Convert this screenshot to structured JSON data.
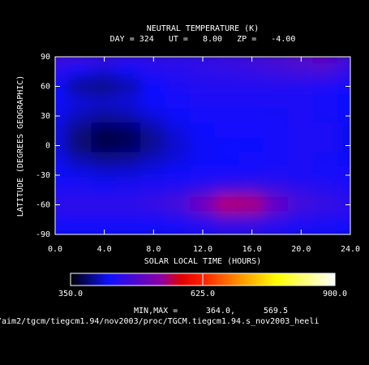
{
  "chart_data": {
    "type": "heatmap",
    "title": "NEUTRAL TEMPERATURE (K)",
    "subtitle": "DAY = 324   UT =   8.00   ZP =   -4.00",
    "xlabel": "SOLAR LOCAL TIME (HOURS)",
    "ylabel": "LATITUDE (DEGREES GEOGRAPHIC)",
    "x": [
      0,
      2,
      4,
      6,
      8,
      10,
      12,
      14,
      16,
      18,
      20,
      22,
      24
    ],
    "y": [
      90,
      75,
      60,
      45,
      30,
      15,
      0,
      -15,
      -30,
      -45,
      -60,
      -75,
      -90
    ],
    "z": [
      [
        470,
        470,
        465,
        460,
        460,
        460,
        460,
        465,
        470,
        480,
        490,
        500,
        470
      ],
      [
        450,
        430,
        420,
        430,
        445,
        450,
        455,
        460,
        465,
        470,
        475,
        480,
        460
      ],
      [
        430,
        390,
        385,
        400,
        430,
        440,
        445,
        445,
        445,
        445,
        445,
        440,
        435
      ],
      [
        430,
        420,
        415,
        420,
        430,
        435,
        440,
        440,
        440,
        440,
        440,
        435,
        430
      ],
      [
        425,
        410,
        400,
        405,
        420,
        430,
        435,
        435,
        435,
        438,
        440,
        438,
        430
      ],
      [
        420,
        390,
        375,
        380,
        400,
        420,
        430,
        432,
        432,
        435,
        440,
        440,
        425
      ],
      [
        420,
        385,
        370,
        375,
        395,
        415,
        428,
        430,
        430,
        432,
        440,
        440,
        425
      ],
      [
        425,
        405,
        395,
        398,
        410,
        420,
        428,
        430,
        432,
        435,
        440,
        438,
        428
      ],
      [
        430,
        425,
        420,
        420,
        425,
        430,
        432,
        435,
        438,
        440,
        438,
        435,
        432
      ],
      [
        440,
        440,
        438,
        440,
        445,
        450,
        460,
        470,
        475,
        465,
        455,
        450,
        442
      ],
      [
        455,
        460,
        460,
        460,
        465,
        480,
        520,
        565,
        560,
        510,
        475,
        465,
        458
      ],
      [
        440,
        440,
        440,
        440,
        440,
        445,
        460,
        480,
        480,
        465,
        450,
        445,
        440
      ],
      [
        430,
        430,
        430,
        430,
        430,
        430,
        435,
        440,
        440,
        435,
        430,
        430,
        430
      ]
    ],
    "xlim": [
      0,
      24
    ],
    "ylim": [
      -90,
      90
    ],
    "xticks": [
      {
        "value": 0,
        "label": "0.0"
      },
      {
        "value": 4,
        "label": "4.0"
      },
      {
        "value": 8,
        "label": "8.0"
      },
      {
        "value": 12,
        "label": "12.0"
      },
      {
        "value": 16,
        "label": "16.0"
      },
      {
        "value": 20,
        "label": "20.0"
      },
      {
        "value": 24,
        "label": "24.0"
      }
    ],
    "yticks": [
      90,
      60,
      30,
      0,
      -30,
      -60,
      -90
    ],
    "colorscale": [
      [
        350,
        "#000000"
      ],
      [
        430,
        "#1010ff"
      ],
      [
        540,
        "#9000a0"
      ],
      [
        580,
        "#e00000"
      ],
      [
        625,
        "#ff2000"
      ],
      [
        700,
        "#ff9000"
      ],
      [
        780,
        "#ffff00"
      ],
      [
        900,
        "#ffffff"
      ]
    ],
    "clim": [
      350,
      900
    ],
    "cticks": [
      {
        "value": 350,
        "label": "350.0"
      },
      {
        "value": 625,
        "label": "625.0"
      },
      {
        "value": 900,
        "label": "900.0"
      }
    ],
    "minmax_label": "MIN,MAX =",
    "min": "364.0,",
    "max": "569.5",
    "file_path": "/aim2/tgcm/tiegcm1.94/nov2003/proc/TGCM.tiegcm1.94.s_nov2003_heeli"
  }
}
